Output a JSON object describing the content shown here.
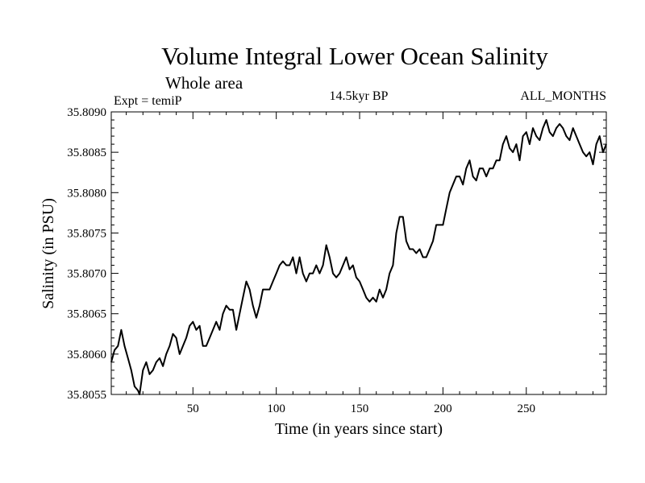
{
  "chart_data": {
    "type": "line",
    "title": "Volume Integral Lower Ocean Salinity",
    "subtitle": "Whole area",
    "experiment_label": "Expt = temiP",
    "period_label": "14.5kyr BP",
    "months_label": "ALL_MONTHS",
    "xlabel": "Time (in years since start)",
    "ylabel": "Salinity (in PSU)",
    "xlim": [
      1,
      298
    ],
    "ylim": [
      35.8055,
      35.809
    ],
    "xticks": [
      50,
      100,
      150,
      200,
      250
    ],
    "yticks": [
      "35.8055",
      "35.8060",
      "35.8065",
      "35.8070",
      "35.8075",
      "35.8080",
      "35.8085",
      "35.8090"
    ],
    "grid": false,
    "series": [
      {
        "name": "salinity",
        "points": [
          [
            1,
            35.8059
          ],
          [
            3,
            35.80605
          ],
          [
            5,
            35.8061
          ],
          [
            7,
            35.8063
          ],
          [
            9,
            35.8061
          ],
          [
            11,
            35.80595
          ],
          [
            13,
            35.8058
          ],
          [
            15,
            35.8056
          ],
          [
            17,
            35.80555
          ],
          [
            18,
            35.8055
          ],
          [
            20,
            35.8058
          ],
          [
            22,
            35.8059
          ],
          [
            24,
            35.80575
          ],
          [
            26,
            35.8058
          ],
          [
            28,
            35.8059
          ],
          [
            30,
            35.80595
          ],
          [
            32,
            35.80585
          ],
          [
            34,
            35.806
          ],
          [
            36,
            35.8061
          ],
          [
            38,
            35.80625
          ],
          [
            40,
            35.8062
          ],
          [
            42,
            35.806
          ],
          [
            44,
            35.8061
          ],
          [
            46,
            35.8062
          ],
          [
            48,
            35.80635
          ],
          [
            50,
            35.8064
          ],
          [
            52,
            35.8063
          ],
          [
            54,
            35.80635
          ],
          [
            56,
            35.8061
          ],
          [
            58,
            35.8061
          ],
          [
            60,
            35.8062
          ],
          [
            62,
            35.8063
          ],
          [
            64,
            35.8064
          ],
          [
            66,
            35.8063
          ],
          [
            68,
            35.8065
          ],
          [
            70,
            35.8066
          ],
          [
            72,
            35.80655
          ],
          [
            74,
            35.80655
          ],
          [
            76,
            35.8063
          ],
          [
            78,
            35.8065
          ],
          [
            80,
            35.8067
          ],
          [
            82,
            35.8069
          ],
          [
            84,
            35.8068
          ],
          [
            86,
            35.8066
          ],
          [
            88,
            35.80645
          ],
          [
            90,
            35.8066
          ],
          [
            92,
            35.8068
          ],
          [
            94,
            35.8068
          ],
          [
            96,
            35.8068
          ],
          [
            98,
            35.8069
          ],
          [
            100,
            35.807
          ],
          [
            102,
            35.8071
          ],
          [
            104,
            35.80715
          ],
          [
            106,
            35.8071
          ],
          [
            108,
            35.8071
          ],
          [
            110,
            35.8072
          ],
          [
            112,
            35.807
          ],
          [
            114,
            35.8072
          ],
          [
            116,
            35.807
          ],
          [
            118,
            35.8069
          ],
          [
            120,
            35.807
          ],
          [
            122,
            35.807
          ],
          [
            124,
            35.8071
          ],
          [
            126,
            35.807
          ],
          [
            128,
            35.8071
          ],
          [
            130,
            35.80735
          ],
          [
            132,
            35.8072
          ],
          [
            134,
            35.807
          ],
          [
            136,
            35.80695
          ],
          [
            138,
            35.807
          ],
          [
            140,
            35.8071
          ],
          [
            142,
            35.8072
          ],
          [
            144,
            35.80705
          ],
          [
            146,
            35.8071
          ],
          [
            148,
            35.80695
          ],
          [
            150,
            35.8069
          ],
          [
            152,
            35.8068
          ],
          [
            154,
            35.8067
          ],
          [
            156,
            35.80665
          ],
          [
            158,
            35.8067
          ],
          [
            160,
            35.80665
          ],
          [
            162,
            35.8068
          ],
          [
            164,
            35.8067
          ],
          [
            166,
            35.8068
          ],
          [
            168,
            35.807
          ],
          [
            170,
            35.8071
          ],
          [
            172,
            35.8075
          ],
          [
            174,
            35.8077
          ],
          [
            176,
            35.8077
          ],
          [
            178,
            35.8074
          ],
          [
            180,
            35.8073
          ],
          [
            182,
            35.8073
          ],
          [
            184,
            35.80725
          ],
          [
            186,
            35.8073
          ],
          [
            188,
            35.8072
          ],
          [
            190,
            35.8072
          ],
          [
            192,
            35.8073
          ],
          [
            194,
            35.8074
          ],
          [
            196,
            35.8076
          ],
          [
            198,
            35.8076
          ],
          [
            200,
            35.8076
          ],
          [
            202,
            35.8078
          ],
          [
            204,
            35.808
          ],
          [
            206,
            35.8081
          ],
          [
            208,
            35.8082
          ],
          [
            210,
            35.8082
          ],
          [
            212,
            35.8081
          ],
          [
            214,
            35.8083
          ],
          [
            216,
            35.8084
          ],
          [
            218,
            35.8082
          ],
          [
            220,
            35.80815
          ],
          [
            222,
            35.8083
          ],
          [
            224,
            35.8083
          ],
          [
            226,
            35.8082
          ],
          [
            228,
            35.8083
          ],
          [
            230,
            35.8083
          ],
          [
            232,
            35.8084
          ],
          [
            234,
            35.8084
          ],
          [
            236,
            35.8086
          ],
          [
            238,
            35.8087
          ],
          [
            240,
            35.80855
          ],
          [
            242,
            35.8085
          ],
          [
            244,
            35.8086
          ],
          [
            246,
            35.8084
          ],
          [
            248,
            35.8087
          ],
          [
            250,
            35.80875
          ],
          [
            252,
            35.8086
          ],
          [
            254,
            35.8088
          ],
          [
            256,
            35.8087
          ],
          [
            258,
            35.80865
          ],
          [
            260,
            35.8088
          ],
          [
            262,
            35.8089
          ],
          [
            264,
            35.80875
          ],
          [
            266,
            35.8087
          ],
          [
            268,
            35.8088
          ],
          [
            270,
            35.80885
          ],
          [
            272,
            35.8088
          ],
          [
            274,
            35.8087
          ],
          [
            276,
            35.80865
          ],
          [
            278,
            35.8088
          ],
          [
            280,
            35.8087
          ],
          [
            282,
            35.8086
          ],
          [
            284,
            35.8085
          ],
          [
            286,
            35.80845
          ],
          [
            288,
            35.8085
          ],
          [
            290,
            35.80835
          ],
          [
            292,
            35.8086
          ],
          [
            294,
            35.8087
          ],
          [
            296,
            35.8085
          ],
          [
            298,
            35.8086
          ]
        ]
      }
    ]
  }
}
